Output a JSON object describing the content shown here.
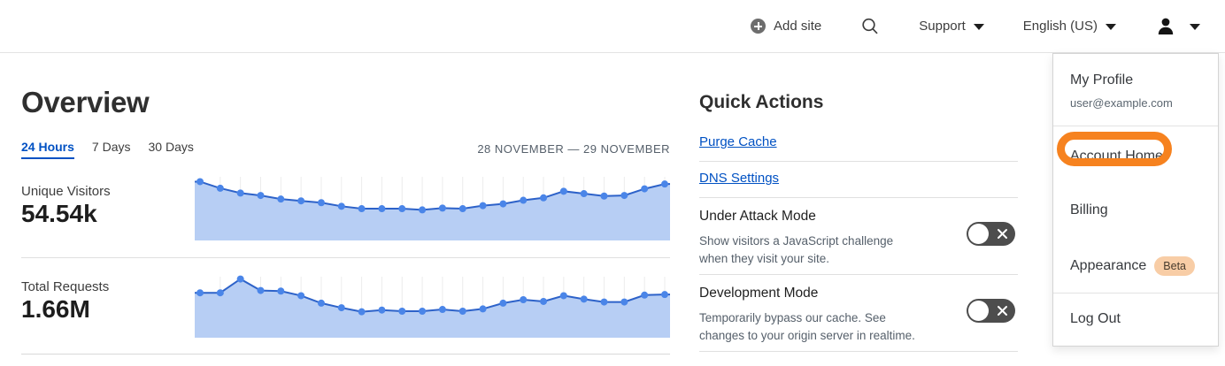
{
  "header": {
    "add_site_label": "Add site",
    "support_label": "Support",
    "language_label": "English (US)"
  },
  "overview": {
    "title": "Overview",
    "tabs": [
      {
        "label": "24 Hours",
        "active": true
      },
      {
        "label": "7 Days",
        "active": false
      },
      {
        "label": "30 Days",
        "active": false
      }
    ],
    "date_range": "28 NOVEMBER — 29 NOVEMBER",
    "metrics": [
      {
        "label": "Unique Visitors",
        "value": "54.54k"
      },
      {
        "label": "Total Requests",
        "value": "1.66M"
      }
    ]
  },
  "chart_data": [
    {
      "type": "area",
      "title": "Unique Visitors — 24 Hours",
      "total_label": "54.54k",
      "x": "hourly points, 28 November — 29 November",
      "ylim": [
        0,
        100
      ],
      "grid": "vertical-light",
      "legend": "none",
      "values_relative_pct": [
        92,
        81,
        73,
        69,
        63,
        60,
        57,
        51,
        47,
        47,
        47,
        45,
        48,
        47,
        52,
        55,
        61,
        65,
        76,
        72,
        68,
        69,
        80,
        88
      ]
    },
    {
      "type": "area",
      "title": "Total Requests — 24 Hours",
      "total_label": "1.66M",
      "x": "hourly points, 28 November — 29 November",
      "ylim": [
        0,
        100
      ],
      "grid": "vertical-light",
      "legend": "none",
      "values_relative_pct": [
        72,
        72,
        96,
        76,
        75,
        67,
        54,
        46,
        39,
        42,
        40,
        40,
        43,
        40,
        44,
        54,
        60,
        57,
        67,
        61,
        56,
        56,
        68,
        69
      ]
    }
  ],
  "quick_actions": {
    "title": "Quick Actions",
    "links": [
      {
        "label": "Purge Cache"
      },
      {
        "label": "DNS Settings"
      }
    ],
    "toggles": [
      {
        "title": "Under Attack Mode",
        "description": "Show visitors a JavaScript challenge when they visit your site.",
        "enabled": false
      },
      {
        "title": "Development Mode",
        "description": "Temporarily bypass our cache. See changes to your origin server in realtime.",
        "enabled": false
      }
    ]
  },
  "user_menu": {
    "profile_label": "My Profile",
    "email": "user@example.com",
    "items": [
      {
        "label": "Account Home",
        "highlighted": true
      },
      {
        "label": "Billing"
      },
      {
        "label": "Appearance",
        "badge": "Beta"
      },
      {
        "label": "Log Out"
      }
    ]
  },
  "colors": {
    "accent_blue": "#0051c3",
    "chart_fill": "#b7cef4",
    "chart_line": "#2d62c9",
    "chart_dot": "#4a85e8",
    "chart_grid": "#ececec",
    "highlight_orange": "#f6821f",
    "beta_badge_bg": "#f8cda6",
    "toggle_off_bg": "#4d4d4d"
  }
}
